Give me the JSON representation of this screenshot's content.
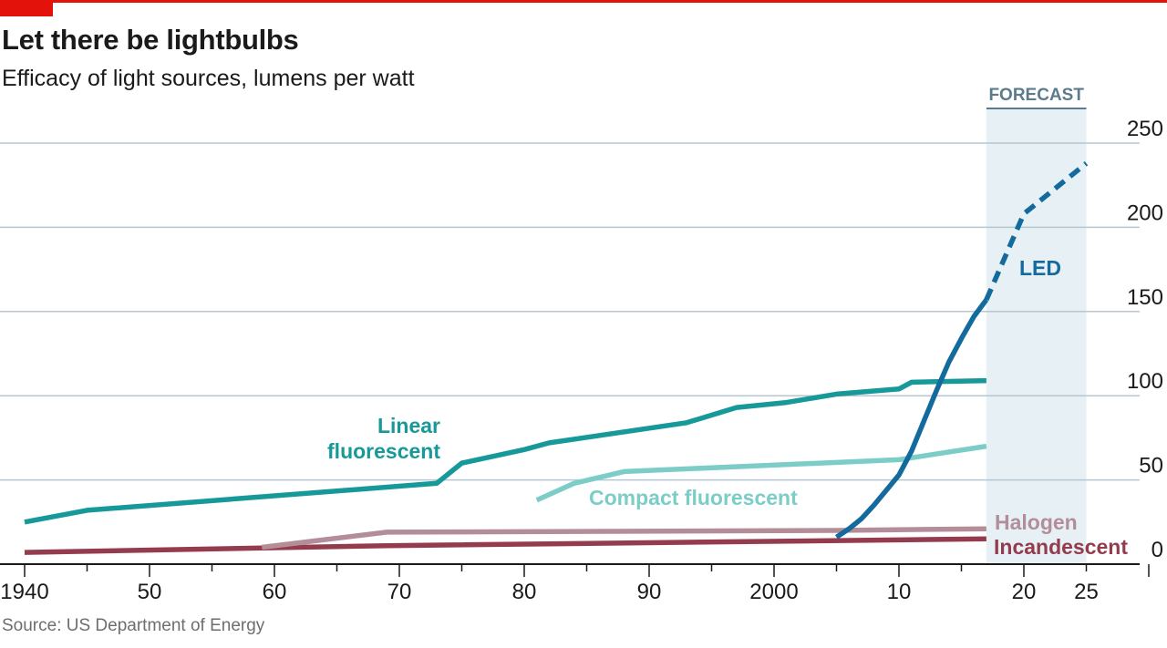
{
  "header": {
    "title": "Let there be lightbulbs",
    "subtitle": "Efficacy of light sources, lumens per watt"
  },
  "footer": {
    "source": "Source: US Department of Energy"
  },
  "colors": {
    "accent_red": "#e3120b",
    "linear_fluorescent": "#17999a",
    "compact_fluorescent": "#7ccdc8",
    "led": "#136a9c",
    "halogen": "#b38e98",
    "incandescent": "#943c4e",
    "forecast_band": "#e6f0f5",
    "grid": "#b7c6d0"
  },
  "chart_data": {
    "type": "line",
    "title": "Let there be lightbulbs",
    "subtitle": "Efficacy of light sources, lumens per watt",
    "xlabel": "",
    "ylabel": "",
    "xlim": [
      1940,
      2031
    ],
    "ylim": [
      0,
      250
    ],
    "yticks": [
      0,
      50,
      100,
      150,
      200,
      250
    ],
    "xticks": [
      {
        "value": 1940,
        "label": "1940"
      },
      {
        "value": 1950,
        "label": "50"
      },
      {
        "value": 1960,
        "label": "60"
      },
      {
        "value": 1970,
        "label": "70"
      },
      {
        "value": 1980,
        "label": "80"
      },
      {
        "value": 1990,
        "label": "90"
      },
      {
        "value": 2000,
        "label": "2000"
      },
      {
        "value": 2010,
        "label": "10"
      },
      {
        "value": 2020,
        "label": "20"
      },
      {
        "value": 2025,
        "label": "25"
      }
    ],
    "grid": true,
    "forecast": {
      "label": "FORECAST",
      "start": 2017,
      "end": 2025
    },
    "series": [
      {
        "name": "Linear fluorescent",
        "label_lines": [
          "Linear",
          "fluorescent"
        ],
        "color": "#17999a",
        "points": [
          [
            1940,
            25
          ],
          [
            1945,
            32
          ],
          [
            1973,
            48
          ],
          [
            1975,
            60
          ],
          [
            1980,
            68
          ],
          [
            1982,
            72
          ],
          [
            1993,
            84
          ],
          [
            1997,
            93
          ],
          [
            2001,
            96
          ],
          [
            2005,
            101
          ],
          [
            2010,
            104
          ],
          [
            2011,
            108
          ],
          [
            2017,
            109
          ]
        ]
      },
      {
        "name": "Compact fluorescent",
        "label_lines": [
          "Compact fluorescent"
        ],
        "color": "#7ccdc8",
        "points": [
          [
            1981,
            38
          ],
          [
            1984,
            48
          ],
          [
            1988,
            55
          ],
          [
            2010,
            62
          ],
          [
            2017,
            70
          ]
        ]
      },
      {
        "name": "LED",
        "label_lines": [
          "LED"
        ],
        "color": "#136a9c",
        "points": [
          [
            2005,
            16
          ],
          [
            2006,
            21
          ],
          [
            2007,
            27
          ],
          [
            2008,
            35
          ],
          [
            2009,
            44
          ],
          [
            2010,
            53
          ],
          [
            2011,
            67
          ],
          [
            2012,
            85
          ],
          [
            2013,
            103
          ],
          [
            2014,
            120
          ],
          [
            2015,
            134
          ],
          [
            2016,
            147
          ],
          [
            2017,
            157
          ]
        ],
        "forecast_points": [
          [
            2017,
            157
          ],
          [
            2020,
            208
          ],
          [
            2025,
            238
          ]
        ]
      },
      {
        "name": "Halogen",
        "label_lines": [
          "Halogen"
        ],
        "color": "#b38e98",
        "points": [
          [
            1959,
            10
          ],
          [
            1969,
            19
          ],
          [
            2005,
            20
          ],
          [
            2017,
            21
          ]
        ]
      },
      {
        "name": "Incandescent",
        "label_lines": [
          "Incandescent"
        ],
        "color": "#943c4e",
        "points": [
          [
            1940,
            7
          ],
          [
            1969,
            11
          ],
          [
            2017,
            15
          ]
        ]
      }
    ]
  }
}
